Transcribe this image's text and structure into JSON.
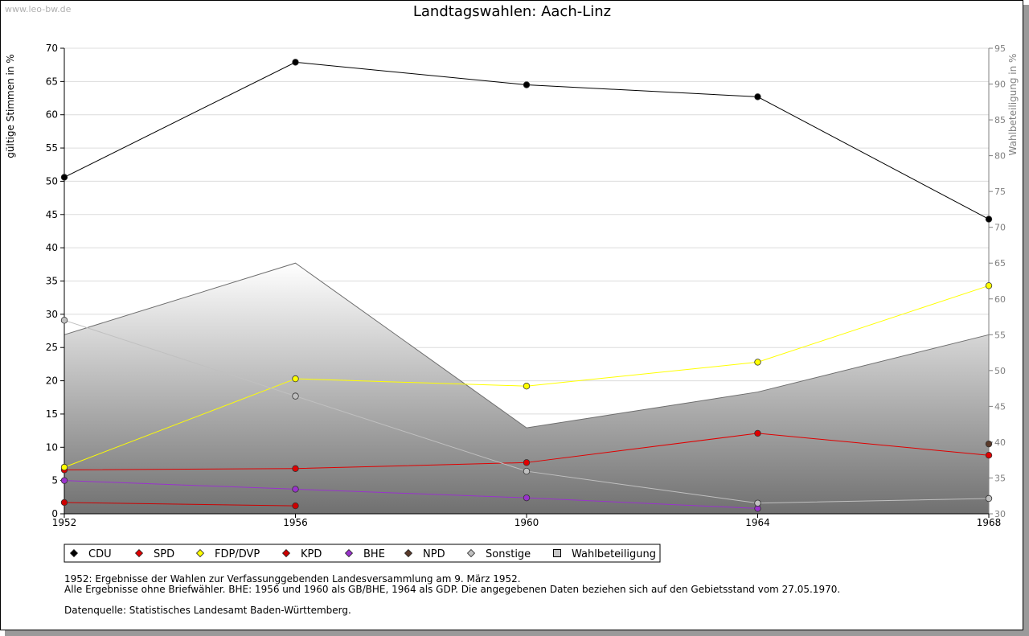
{
  "watermark": "www.leo-bw.de",
  "colors": {
    "CDU": "#000000",
    "SPD": "#e00000",
    "FDP/DVP": "#ffff00",
    "KPD": "#cc0000",
    "BHE": "#9933cc",
    "NPD": "#5a3a2a",
    "Sonstige": "#c0c0c0",
    "Wahlbeteiligung": "#808080"
  },
  "chart_data": {
    "type": "line",
    "title": "Landtagswahlen: Aach-Linz",
    "ylabel": "gültige Stimmen in %",
    "y2label": "Wahlbeteiligung in %",
    "ylim": [
      0,
      70
    ],
    "y2lim": [
      30,
      95
    ],
    "yticks": [
      0,
      5,
      10,
      15,
      20,
      25,
      30,
      35,
      40,
      45,
      50,
      55,
      60,
      65,
      70
    ],
    "y2ticks": [
      30,
      35,
      40,
      45,
      50,
      55,
      60,
      65,
      70,
      75,
      80,
      85,
      90,
      95
    ],
    "x": [
      "1952",
      "1956",
      "1960",
      "1964",
      "1968"
    ],
    "grid": true,
    "legend_position": "bottom",
    "series": [
      {
        "name": "CDU",
        "values": [
          50.6,
          67.9,
          64.5,
          62.7,
          44.3
        ]
      },
      {
        "name": "SPD",
        "values": [
          6.6,
          6.8,
          7.7,
          12.1,
          8.8
        ]
      },
      {
        "name": "FDP/DVP",
        "values": [
          7.0,
          20.3,
          19.2,
          22.8,
          34.3
        ]
      },
      {
        "name": "KPD",
        "values": [
          1.7,
          1.2,
          null,
          null,
          null
        ]
      },
      {
        "name": "BHE",
        "values": [
          5.0,
          3.7,
          2.4,
          0.8,
          null
        ]
      },
      {
        "name": "NPD",
        "values": [
          null,
          null,
          null,
          null,
          10.5
        ]
      },
      {
        "name": "Sonstige",
        "values": [
          29.1,
          17.7,
          6.4,
          1.6,
          2.3
        ]
      }
    ],
    "area_series": {
      "name": "Wahlbeteiligung",
      "axis": "right",
      "values": [
        55.0,
        65.0,
        42.0,
        47.0,
        55.0
      ]
    }
  },
  "notes": [
    "1952: Ergebnisse der Wahlen zur Verfassunggebenden Landesversammlung am 9. März 1952.",
    "Alle Ergebnisse ohne Briefwähler. BHE: 1956 und 1960 als GB/BHE, 1964 als GDP. Die angegebenen Daten beziehen sich auf den Gebietsstand vom 27.05.1970.",
    "Datenquelle: Statistisches Landesamt Baden-Württemberg."
  ]
}
